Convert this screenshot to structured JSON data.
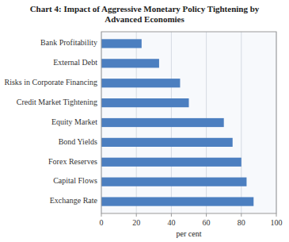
{
  "chart_data": {
    "type": "bar",
    "orientation": "horizontal",
    "title": "Chart 4: Impact of Aggressive Monetary Policy Tightening by\nAdvanced Economies",
    "categories": [
      "Exchange Rate",
      "Capital Flows",
      "Forex Reserves",
      "Bond Yields",
      "Equity Market",
      "Credit Market Tightening",
      "Risks in Corporate Financing",
      "External Debt",
      "Bank Profitability"
    ],
    "values": [
      87,
      83,
      80,
      75,
      70,
      50,
      45,
      33,
      23
    ],
    "color": "#4c7fc0",
    "xlabel": "per cent",
    "xlim": [
      0,
      100
    ],
    "xticks": [
      0,
      20,
      40,
      60,
      80,
      100
    ],
    "grid": true
  }
}
